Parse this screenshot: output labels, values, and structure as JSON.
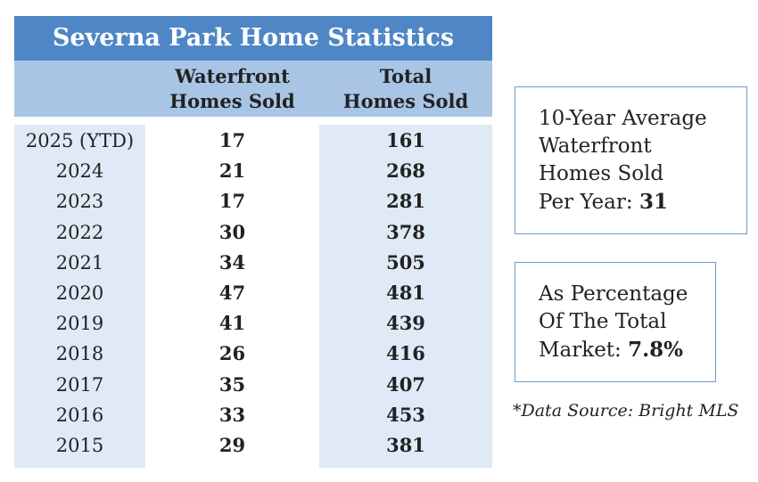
{
  "title": "Severna Park Home Statistics",
  "table": {
    "headers": [
      [],
      [
        "Waterfront",
        "Homes Sold"
      ],
      [
        "Total",
        "Homes Sold"
      ]
    ],
    "rows": [
      [
        "2025 (YTD)",
        "17",
        "161"
      ],
      [
        "2024",
        "21",
        "268"
      ],
      [
        "2023",
        "17",
        "281"
      ],
      [
        "2022",
        "30",
        "378"
      ],
      [
        "2021",
        "34",
        "505"
      ],
      [
        "2020",
        "47",
        "481"
      ],
      [
        "2019",
        "41",
        "439"
      ],
      [
        "2018",
        "26",
        "416"
      ],
      [
        "2017",
        "35",
        "407"
      ],
      [
        "2016",
        "33",
        "453"
      ],
      [
        "2015",
        "29",
        "381"
      ]
    ]
  },
  "boxes": [
    {
      "lines": [
        "10-Year Average",
        "Waterfront",
        "Homes Sold",
        "Per Year:"
      ],
      "value": "31"
    },
    {
      "lines": [
        "As Percentage",
        "Of The Total",
        "Market:"
      ],
      "value": "7.8%"
    }
  ],
  "source": "*Data Source: Bright MLS"
}
